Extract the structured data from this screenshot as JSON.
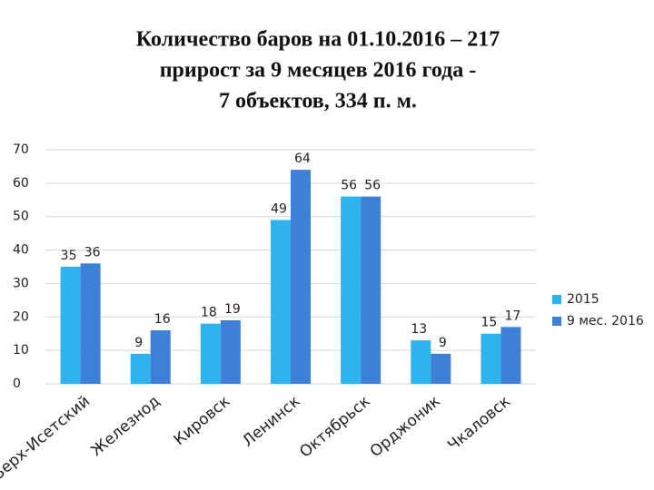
{
  "chart_data": {
    "type": "bar",
    "title": [
      "Количество баров на 01.10.2016  – 217",
      "прирост за 9 месяцев 2016 года -",
      "7 объектов,  334 п. м."
    ],
    "categories": [
      "Верх-Исетский",
      "Железнод",
      "Кировск",
      "Ленинск",
      "Октябрьск",
      "Орджоник",
      "Чкаловск"
    ],
    "series": [
      {
        "name": "2015",
        "color": "#2fb3ec",
        "values": [
          35,
          9,
          18,
          49,
          56,
          13,
          15
        ]
      },
      {
        "name": "9 мес. 2016",
        "color": "#3d80d6",
        "values": [
          36,
          16,
          19,
          64,
          56,
          9,
          17
        ]
      }
    ],
    "ylim": [
      0,
      70
    ],
    "yticks": [
      0,
      10,
      20,
      30,
      40,
      50,
      60,
      70
    ],
    "grid": true,
    "legend": "right"
  }
}
